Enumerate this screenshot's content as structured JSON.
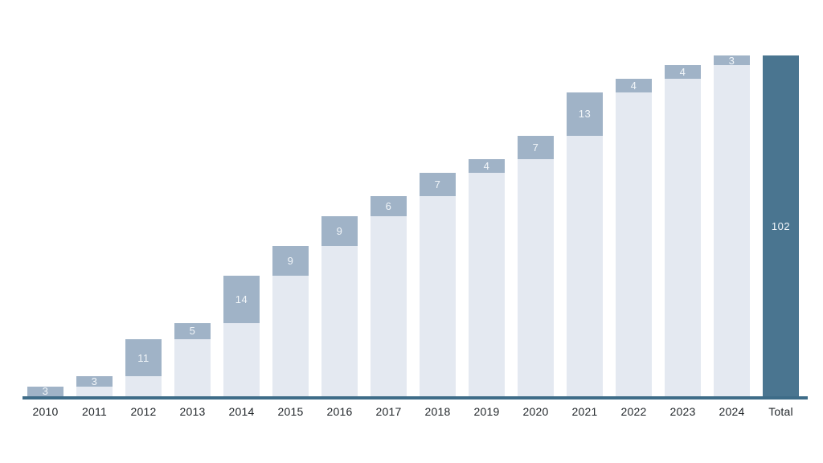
{
  "chart_data": {
    "type": "bar",
    "subtype": "stacked-cumulative-waterfall",
    "title": "",
    "xlabel": "",
    "ylabel": "",
    "ylim": [
      0,
      102
    ],
    "grid": false,
    "legend": null,
    "categories": [
      "2010",
      "2011",
      "2012",
      "2013",
      "2014",
      "2015",
      "2016",
      "2017",
      "2018",
      "2019",
      "2020",
      "2021",
      "2022",
      "2023",
      "2024",
      "Total"
    ],
    "values": [
      3,
      3,
      11,
      5,
      14,
      9,
      9,
      6,
      7,
      4,
      7,
      13,
      4,
      4,
      3,
      102
    ],
    "cumulative_totals": [
      3,
      6,
      17,
      22,
      36,
      45,
      54,
      60,
      67,
      71,
      78,
      91,
      95,
      99,
      102,
      102
    ],
    "grand_total": 102,
    "bars": [
      {
        "label": "2010",
        "base": 0,
        "increment": 3,
        "value_label": "3",
        "kind": "year"
      },
      {
        "label": "2011",
        "base": 3,
        "increment": 3,
        "value_label": "3",
        "kind": "year"
      },
      {
        "label": "2012",
        "base": 6,
        "increment": 11,
        "value_label": "11",
        "kind": "year"
      },
      {
        "label": "2013",
        "base": 17,
        "increment": 5,
        "value_label": "5",
        "kind": "year"
      },
      {
        "label": "2014",
        "base": 22,
        "increment": 14,
        "value_label": "14",
        "kind": "year"
      },
      {
        "label": "2015",
        "base": 36,
        "increment": 9,
        "value_label": "9",
        "kind": "year"
      },
      {
        "label": "2016",
        "base": 45,
        "increment": 9,
        "value_label": "9",
        "kind": "year"
      },
      {
        "label": "2017",
        "base": 54,
        "increment": 6,
        "value_label": "6",
        "kind": "year"
      },
      {
        "label": "2018",
        "base": 60,
        "increment": 7,
        "value_label": "7",
        "kind": "year"
      },
      {
        "label": "2019",
        "base": 67,
        "increment": 4,
        "value_label": "4",
        "kind": "year"
      },
      {
        "label": "2020",
        "base": 71,
        "increment": 7,
        "value_label": "7",
        "kind": "year"
      },
      {
        "label": "2021",
        "base": 78,
        "increment": 13,
        "value_label": "13",
        "kind": "year"
      },
      {
        "label": "2022",
        "base": 91,
        "increment": 4,
        "value_label": "4",
        "kind": "year"
      },
      {
        "label": "2023",
        "base": 95,
        "increment": 4,
        "value_label": "4",
        "kind": "year"
      },
      {
        "label": "2024",
        "base": 99,
        "increment": 3,
        "value_label": "3",
        "kind": "year"
      },
      {
        "label": "Total",
        "base": 0,
        "increment": 102,
        "value_label": "102",
        "kind": "total"
      }
    ],
    "colors": {
      "base_segment": "#E4E9F1",
      "increment_segment": "#A0B3C7",
      "total_bar": "#4A7590",
      "axis_line": "#3E6C88",
      "axis_label_text": "#1F2428",
      "value_label_text": "#F2F6F9",
      "background": "#FFFFFF"
    }
  }
}
